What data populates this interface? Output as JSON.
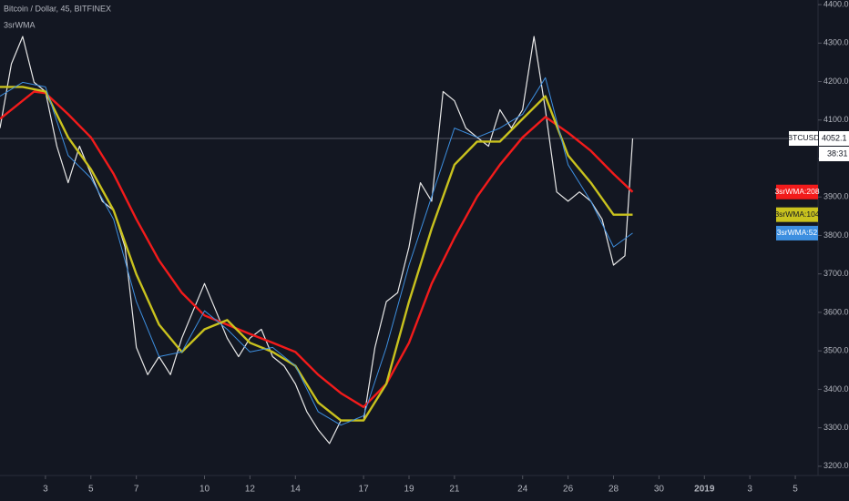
{
  "chart_data": {
    "type": "line",
    "title": "Bitcoin / Dollar, 45, BITFINEX",
    "subtitle": "3srWMA",
    "xlim": [
      1,
      37
    ],
    "xticks": [
      3,
      5,
      7,
      10,
      12,
      14,
      17,
      19,
      21,
      24,
      26,
      28,
      30,
      {
        "value": 32,
        "label": "2019"
      },
      {
        "value": 34,
        "label": "3"
      },
      {
        "value": 36,
        "label": "5"
      }
    ],
    "ylim": [
      3176,
      4412
    ],
    "yticks": [
      {
        "value": 3200,
        "label": "3200.0"
      },
      {
        "value": 3300,
        "label": "3300.0"
      },
      {
        "value": 3400,
        "label": "3400.0"
      },
      {
        "value": 3500,
        "label": "3500.0"
      },
      {
        "value": 3600,
        "label": "3600.0"
      },
      {
        "value": 3700,
        "label": "3700.0"
      },
      {
        "value": 3800,
        "label": "3800.0"
      },
      {
        "value": 3900,
        "label": "3900.0"
      },
      {
        "value": 4000,
        "label": "4000.0"
      },
      {
        "value": 4100,
        "label": "4100.0"
      },
      {
        "value": 4200,
        "label": "4200.0"
      },
      {
        "value": 4300,
        "label": "4300.0"
      },
      {
        "value": 4400,
        "label": "4400.0"
      }
    ],
    "grid": false,
    "last_price": 4052.1,
    "countdown": "38:31",
    "series": [
      {
        "name": "BTCUSD",
        "color": "#e8e8e8",
        "x": [
          1,
          1.5,
          2,
          2.5,
          3,
          3.5,
          4,
          4.5,
          5,
          5.5,
          6,
          6.5,
          7,
          7.5,
          8,
          8.5,
          9,
          9.5,
          10,
          10.5,
          11,
          11.5,
          12,
          12.5,
          13,
          13.5,
          14,
          14.5,
          15,
          15.5,
          16,
          16.5,
          17,
          17.5,
          18,
          18.5,
          19,
          19.5,
          20,
          20.5,
          21,
          21.5,
          22,
          22.5,
          23,
          23.5,
          24,
          24.5,
          25,
          25.5,
          26,
          26.5,
          27,
          27.5,
          28,
          28.5,
          28.84
        ],
        "values": [
          4079,
          4246,
          4317,
          4198,
          4174,
          4032,
          3937,
          4032,
          3960,
          3889,
          3865,
          3770,
          3509,
          3438,
          3485,
          3438,
          3533,
          3604,
          3675,
          3604,
          3533,
          3485,
          3533,
          3556,
          3485,
          3461,
          3414,
          3342,
          3295,
          3259,
          3319,
          3319,
          3319,
          3509,
          3628,
          3651,
          3770,
          3937,
          3889,
          4174,
          4150,
          4079,
          4055,
          4032,
          4127,
          4079,
          4127,
          4317,
          4127,
          3913,
          3889,
          3913,
          3889,
          3842,
          3723,
          3747,
          4052.1
        ]
      },
      {
        "name": "3srWMA:208",
        "color": "#f21b1b",
        "x": [
          1,
          2.5,
          3,
          4,
          5,
          6,
          7,
          8,
          9,
          10,
          11,
          12,
          13,
          14,
          15,
          16,
          17,
          18,
          19,
          20,
          21,
          22,
          23,
          24,
          25,
          26,
          27,
          28,
          28.84
        ],
        "values": [
          4103,
          4174,
          4170,
          4115,
          4055,
          3960,
          3842,
          3735,
          3651,
          3592,
          3568,
          3544,
          3521,
          3497,
          3438,
          3390,
          3354,
          3414,
          3521,
          3675,
          3794,
          3901,
          3984,
          4055,
          4108,
          4067,
          4020,
          3960,
          3913
        ]
      },
      {
        "name": "3srWMA:104",
        "color": "#c9c21e",
        "x": [
          1,
          2,
          3,
          4,
          5,
          6,
          7,
          8,
          9,
          10,
          11,
          12,
          13,
          14,
          15,
          16,
          17,
          18,
          19,
          20,
          21,
          22,
          23,
          24,
          25,
          26,
          27,
          28,
          28.84
        ],
        "values": [
          4186,
          4186,
          4174,
          4055,
          3972,
          3865,
          3699,
          3568,
          3497,
          3556,
          3580,
          3521,
          3497,
          3461,
          3366,
          3319,
          3319,
          3414,
          3628,
          3818,
          3984,
          4044,
          4044,
          4103,
          4162,
          4008,
          3937,
          3854,
          3854
        ]
      },
      {
        "name": "3srWMA:52",
        "color": "#3d8fe0",
        "x": [
          1,
          2,
          3,
          4,
          5,
          6,
          7,
          8,
          9,
          10,
          11,
          12,
          13,
          14,
          15,
          16,
          17,
          18,
          19,
          20,
          21,
          22,
          23,
          24,
          25,
          26,
          27,
          28,
          28.84
        ],
        "values": [
          4162,
          4198,
          4186,
          4008,
          3949,
          3842,
          3628,
          3485,
          3497,
          3604,
          3556,
          3497,
          3509,
          3461,
          3342,
          3307,
          3331,
          3509,
          3723,
          3901,
          4079,
          4055,
          4079,
          4115,
          4210,
          3984,
          3889,
          3770,
          3806
        ]
      }
    ]
  }
}
